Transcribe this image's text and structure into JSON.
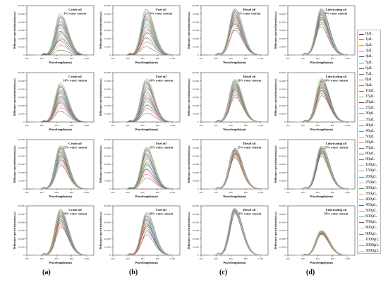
{
  "columns": [
    "(a)",
    "(b)",
    "(c)",
    "(d)"
  ],
  "row_water_contents": [
    "0% water content",
    "10% water content",
    "25% water content",
    "50% water content"
  ],
  "legend": [
    "0µL",
    "1µL",
    "2µL",
    "3µL",
    "4µL",
    "5µL",
    "6µL",
    "7µL",
    "8µL",
    "9µL",
    "10µL",
    "15µL",
    "20µL",
    "25µL",
    "30µL",
    "35µL",
    "40µL",
    "45µL",
    "50µL",
    "60µL",
    "70µL",
    "80µL",
    "90µL",
    "100µL",
    "150µL",
    "200µL",
    "250µL",
    "300µL",
    "350µL",
    "400µL",
    "450µL",
    "500µL",
    "600µL",
    "700µL",
    "800µL",
    "900µL",
    "1000µL",
    "2000µL",
    "3000µL"
  ],
  "legend_colors": [
    "#000000",
    "#e8141b",
    "#f0a20c",
    "#ff5f9e",
    "#2a36c9",
    "#14b8b4",
    "#7a2e8f",
    "#26a84a",
    "#b98a2b",
    "#777777",
    "#d94f00",
    "#89c63c",
    "#c21f7e",
    "#5aa7ff",
    "#3b7a2e",
    "#e9d44a",
    "#9b5cd0",
    "#21c2c9",
    "#c9a5e8",
    "#ff8e4a",
    "#2f8f8f",
    "#b22222",
    "#6a6ad8",
    "#95e06a",
    "#e05d8a",
    "#2aa0c8",
    "#d2b48c",
    "#4a9b4a",
    "#f5a3c0",
    "#8a8a2a",
    "#1f6fd0",
    "#de7b2a",
    "#56c7a0",
    "#a13c78",
    "#c4c4c4",
    "#3c9c9c",
    "#e8e84a",
    "#7f9fd8",
    "#b0d8a8"
  ],
  "chart_data": [
    {
      "type": "line",
      "panel": "crude-0",
      "title": "Crude oil",
      "subtitle": "0% water content",
      "xlabel": "Wavelength(nm)",
      "ylabel": "Reflectance spectral intensity(a.u.)",
      "xlim": [
        200,
        1100
      ],
      "ylim": [
        0,
        60000
      ],
      "xticks": [
        200,
        400,
        600,
        800,
        1000
      ],
      "yticks": [
        0,
        10000,
        20000,
        30000,
        40000,
        50000,
        60000
      ],
      "peak_x": 650,
      "peak_min": 6000,
      "peak_max": 51000
    },
    {
      "type": "line",
      "panel": "fuel-0",
      "title": "Fuel oil",
      "subtitle": "0% water content",
      "xlabel": "Wavelength(nm)",
      "ylabel": "Reflectance spectral intensity(a.u.)",
      "xlim": [
        200,
        1100
      ],
      "ylim": [
        0,
        60000
      ],
      "xticks": [
        200,
        400,
        600,
        800,
        1000
      ],
      "yticks": [
        0,
        10000,
        20000,
        30000,
        40000,
        50000,
        60000
      ],
      "peak_x": 650,
      "peak_min": 10000,
      "peak_max": 56000
    },
    {
      "type": "line",
      "panel": "diesel-0",
      "title": "Diesel oil",
      "subtitle": "0% water content",
      "xlabel": "Wavelength(nm)",
      "ylabel": "Reflectance spectral intensity(a.u.)",
      "xlim": [
        200,
        1100
      ],
      "ylim": [
        0,
        60000
      ],
      "xticks": [
        200,
        400,
        600,
        800,
        1000
      ],
      "yticks": [
        0,
        10000,
        20000,
        30000,
        40000,
        50000,
        60000
      ],
      "peak_x": 650,
      "peak_min": 30000,
      "peak_max": 57000
    },
    {
      "type": "line",
      "panel": "lube-0",
      "title": "Lubricating oil",
      "subtitle": "0% water content",
      "xlabel": "Wavelength(nm)",
      "ylabel": "Reflectance spectral intensity(a.u.)",
      "xlim": [
        200,
        1100
      ],
      "ylim": [
        0,
        60000
      ],
      "xticks": [
        200,
        400,
        600,
        800,
        1000
      ],
      "yticks": [
        0,
        10000,
        20000,
        30000,
        40000,
        50000,
        60000
      ],
      "peak_x": 650,
      "peak_min": 34000,
      "peak_max": 57000
    },
    {
      "type": "line",
      "panel": "crude-10",
      "title": "Crude oil",
      "subtitle": "10% water content",
      "xlabel": "Wavelength(nm)",
      "ylabel": "Reflectance spectral intensity(a.u.)",
      "xlim": [
        200,
        1100
      ],
      "ylim": [
        0,
        60000
      ],
      "xticks": [
        200,
        400,
        600,
        800,
        1000
      ],
      "yticks": [
        0,
        10000,
        20000,
        30000,
        40000,
        50000,
        60000
      ],
      "peak_x": 650,
      "peak_min": 13000,
      "peak_max": 48000
    },
    {
      "type": "line",
      "panel": "fuel-10",
      "title": "Fuel oil",
      "subtitle": "10% water content",
      "xlabel": "Wavelength(nm)",
      "ylabel": "Reflectance spectral intensity(a.u.)",
      "xlim": [
        200,
        1100
      ],
      "ylim": [
        0,
        60000
      ],
      "xticks": [
        200,
        400,
        600,
        800,
        1000
      ],
      "yticks": [
        0,
        10000,
        20000,
        30000,
        40000,
        50000,
        60000
      ],
      "peak_x": 650,
      "peak_min": 10000,
      "peak_max": 53000
    },
    {
      "type": "line",
      "panel": "diesel-10",
      "title": "Diesel oil",
      "subtitle": "10% water content",
      "xlabel": "Wavelength(nm)",
      "ylabel": "Reflectance spectral intensity(a.u.)",
      "xlim": [
        200,
        1100
      ],
      "ylim": [
        0,
        60000
      ],
      "xticks": [
        200,
        400,
        600,
        800,
        1000
      ],
      "yticks": [
        0,
        10000,
        20000,
        30000,
        40000,
        50000,
        60000
      ],
      "peak_x": 650,
      "peak_min": 30000,
      "peak_max": 52000
    },
    {
      "type": "line",
      "panel": "lube-10",
      "title": "Lubricating oil",
      "subtitle": "10% water content",
      "xlabel": "Wavelength(nm)",
      "ylabel": "Reflectance spectral intensity(a.u.)",
      "xlim": [
        200,
        1100
      ],
      "ylim": [
        0,
        60000
      ],
      "xticks": [
        200,
        400,
        600,
        800,
        1000
      ],
      "yticks": [
        0,
        10000,
        20000,
        30000,
        40000,
        50000,
        60000
      ],
      "peak_x": 650,
      "peak_min": 32000,
      "peak_max": 53000
    },
    {
      "type": "line",
      "panel": "crude-25",
      "title": "Crude oil",
      "subtitle": "25% water content",
      "xlabel": "Wavelength(nm)",
      "ylabel": "Reflectance spectral intensity(a.u.)",
      "xlim": [
        200,
        1100
      ],
      "ylim": [
        0,
        60000
      ],
      "xticks": [
        200,
        400,
        600,
        800,
        1000
      ],
      "yticks": [
        0,
        10000,
        20000,
        30000,
        40000,
        50000,
        60000
      ],
      "peak_x": 650,
      "peak_min": 28000,
      "peak_max": 53000
    },
    {
      "type": "line",
      "panel": "fuel-25",
      "title": "Fuel oil",
      "subtitle": "25% water content",
      "xlabel": "Wavelength(nm)",
      "ylabel": "Reflectance spectral intensity(a.u.)",
      "xlim": [
        200,
        1100
      ],
      "ylim": [
        0,
        60000
      ],
      "xticks": [
        200,
        400,
        600,
        800,
        1000
      ],
      "yticks": [
        0,
        10000,
        20000,
        30000,
        40000,
        50000,
        60000
      ],
      "peak_x": 650,
      "peak_min": 12000,
      "peak_max": 52000
    },
    {
      "type": "line",
      "panel": "diesel-25",
      "title": "Diesel oil",
      "subtitle": "25% water content",
      "xlabel": "Wavelength(nm)",
      "ylabel": "Reflectance spectral intensity(a.u.)",
      "xlim": [
        200,
        1100
      ],
      "ylim": [
        0,
        60000
      ],
      "xticks": [
        200,
        400,
        600,
        800,
        1000
      ],
      "yticks": [
        0,
        10000,
        20000,
        30000,
        40000,
        50000,
        60000
      ],
      "peak_x": 650,
      "peak_min": 38000,
      "peak_max": 50000
    },
    {
      "type": "line",
      "panel": "lube-25",
      "title": "Lubricating oil",
      "subtitle": "25% water content",
      "xlabel": "Wavelength(nm)",
      "ylabel": "Reflectance spectral intensity(a.u.)",
      "xlim": [
        200,
        1100
      ],
      "ylim": [
        0,
        60000
      ],
      "xticks": [
        200,
        400,
        600,
        800,
        1000
      ],
      "yticks": [
        0,
        10000,
        20000,
        30000,
        40000,
        50000,
        60000
      ],
      "peak_x": 650,
      "peak_min": 40000,
      "peak_max": 52000
    },
    {
      "type": "line",
      "panel": "crude-50",
      "title": "Crude oil",
      "subtitle": "50% water content",
      "xlabel": "Wavelength(nm)",
      "ylabel": "Reflectance spectral intensity(a.u.)",
      "xlim": [
        200,
        1100
      ],
      "ylim": [
        0,
        60000
      ],
      "xticks": [
        200,
        400,
        600,
        800,
        1000
      ],
      "yticks": [
        0,
        10000,
        20000,
        30000,
        40000,
        50000,
        60000
      ],
      "peak_x": 650,
      "peak_min": 33000,
      "peak_max": 56000
    },
    {
      "type": "line",
      "panel": "fuel-50",
      "title": "Fuel oil",
      "subtitle": "50% water content",
      "xlabel": "Wavelength(nm)",
      "ylabel": "Reflectance spectral intensity(a.u.)",
      "xlim": [
        200,
        1100
      ],
      "ylim": [
        0,
        60000
      ],
      "xticks": [
        200,
        400,
        600,
        800,
        1000
      ],
      "yticks": [
        0,
        10000,
        20000,
        30000,
        40000,
        50000,
        60000
      ],
      "peak_x": 650,
      "peak_min": 24000,
      "peak_max": 52000
    },
    {
      "type": "line",
      "panel": "diesel-50",
      "title": "Diesel oil",
      "subtitle": "50% water content",
      "xlabel": "Wavelength(nm)",
      "ylabel": "Reflectance spectral intensity(a.u.)",
      "xlim": [
        200,
        1100
      ],
      "ylim": [
        0,
        60000
      ],
      "xticks": [
        200,
        400,
        600,
        800,
        1000
      ],
      "yticks": [
        0,
        10000,
        20000,
        30000,
        40000,
        50000,
        60000
      ],
      "peak_x": 650,
      "peak_min": 51000,
      "peak_max": 57000
    },
    {
      "type": "line",
      "panel": "lube-50",
      "title": "Lubricating oil",
      "subtitle": "50% water content",
      "xlabel": "Wavelength(nm)",
      "ylabel": "Reflectance spectral intensity(a.u.)",
      "xlim": [
        200,
        1100
      ],
      "ylim": [
        0,
        60000
      ],
      "xticks": [
        200,
        400,
        600,
        800,
        1000
      ],
      "yticks": [
        0,
        10000,
        20000,
        30000,
        40000,
        50000,
        60000
      ],
      "peak_x": 650,
      "peak_min": 25000,
      "peak_max": 30000
    }
  ]
}
